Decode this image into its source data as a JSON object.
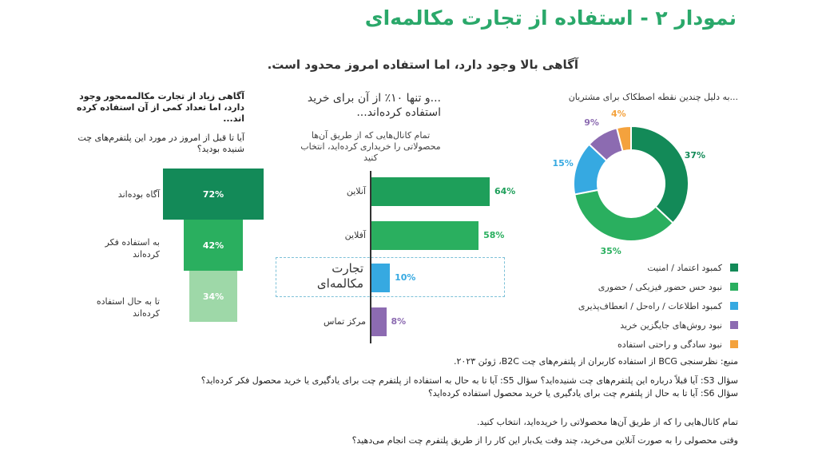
{
  "title": "نمودار ۲ - استفاده از تجارت مکالمه‌ای",
  "subtitle": "آگاهی بالا وجود دارد، اما استفاده امروز محدود است.",
  "chart_data": [
    {
      "type": "bar",
      "title": "آگاهی زیاد از تجارت مکالمه‌محور وجود دارد، اما تعداد کمی از آن استفاده کرده اند...",
      "question": "آیا تا قبل از امروز در مورد این پلتفرم‌های چت شنیده بودید؟",
      "categories": [
        "آگاه بوده‌اند",
        "به استفاده فکر کرده‌اند",
        "تا به حال استفاده کرده‌اند"
      ],
      "values": [
        72,
        42,
        34
      ],
      "value_labels": [
        "72%",
        "42%",
        "34%"
      ],
      "colors": [
        "#138a58",
        "#2aaf5f",
        "#9ed8a8"
      ]
    },
    {
      "type": "bar",
      "title": "...و تنها ۱۰٪ از آن برای خرید استفاده کرده‌اند...",
      "question": "تمام کانال‌هایی که از طریق آن‌ها محصولاتی را خریداری کرده‌اید، انتخاب کنید",
      "categories": [
        "آنلاین",
        "آفلاین",
        "تجارت مکالمه‌ای",
        "مرکز تماس"
      ],
      "values": [
        64,
        58,
        10,
        8
      ],
      "value_labels": [
        "64%",
        "58%",
        "10%",
        "8%"
      ],
      "colors": [
        "#1e9f5a",
        "#2aaf5f",
        "#36a9e1",
        "#8c6bb1"
      ],
      "highlighted": "تجارت مکالمه‌ای"
    },
    {
      "type": "pie",
      "title": "...به دلیل چندین نقطه اصطکاک برای مشتریان",
      "categories": [
        "کمبود اعتماد / امنیت",
        "نبود حس حضور فیزیکی / حضوری",
        "کمبود اطلاعات / راه‌حل / انعطاف‌پذیری",
        "نبود روش‌های جایگزین خرید",
        "نبود سادگی و راحتی استفاده"
      ],
      "values": [
        37,
        35,
        15,
        9,
        4
      ],
      "value_labels": [
        "37%",
        "35%",
        "15%",
        "9%",
        "4%"
      ],
      "colors": [
        "#138a58",
        "#2aaf5f",
        "#36a9e1",
        "#8c6bb1",
        "#f4a23d"
      ]
    }
  ],
  "footer": {
    "source": "منبع: نظرسنجی BCG از استفاده کاربران از پلتفرم‌های چت B2C، ژوئن ۲۰۲۳.",
    "q1": "سؤال S3: آیا قبلاً درباره این پلتفرم‌های چت شنیده‌اید؟ سؤال S5: آیا تا به حال به استفاده از پلتفرم چت برای یادگیری یا خرید محصول فکر کرده‌اید؟",
    "q2": "سؤال S6: آیا تا به حال از پلتفرم چت برای یادگیری یا خرید محصول استفاده کرده‌اید؟",
    "note1": "تمام کانال‌هایی را که از طریق آن‌ها محصولاتی را خریده‌اید، انتخاب کنید.",
    "note2": "وقتی محصولی را به صورت آنلاین می‌خرید، چند وقت یک‌بار این کار را از طریق پلتفرم چت انجام می‌دهید؟"
  }
}
